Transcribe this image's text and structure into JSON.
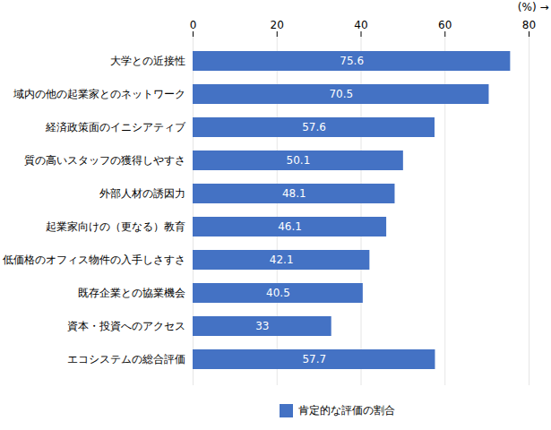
{
  "chart_data": {
    "type": "bar",
    "orientation": "horizontal",
    "xlabel": "(%)",
    "categories": [
      "大学との近接性",
      "域内の他の起業家とのネットワーク",
      "経済政策面のイニシアティブ",
      "質の高いスタッフの獲得しやすさ",
      "外部人材の誘因力",
      "起業家向けの（更なる）教育",
      "低価格のオフィス物件の入手しさすさ",
      "既存企業との協業機会",
      "資本・投資へのアクセス",
      "エコシステムの総合評価"
    ],
    "series": [
      {
        "name": "肯定的な評価の割合",
        "color": "#4472C4",
        "values": [
          75.6,
          70.5,
          57.6,
          50.1,
          48.1,
          46.1,
          42.1,
          40.5,
          33.0,
          57.7
        ]
      }
    ],
    "xlim": [
      0,
      80
    ],
    "xticks": [
      0,
      20,
      40,
      60,
      80
    ],
    "grid": true,
    "data_labels": true,
    "legend": "bottom"
  }
}
